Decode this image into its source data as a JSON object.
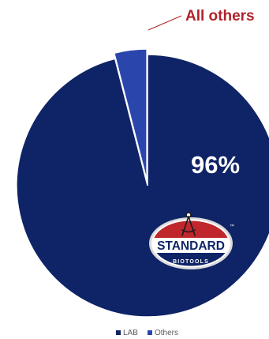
{
  "chart_data": {
    "type": "pie",
    "title": "",
    "start_angle_deg": 0,
    "slices": [
      {
        "name": "LAB",
        "value": 96,
        "color": "#0f2466",
        "label": "96%"
      },
      {
        "name": "Others",
        "value": 4,
        "color": "#2a46ad",
        "label": ""
      }
    ],
    "callout": {
      "text": "All others",
      "color": "#b0232a",
      "slice": "Others"
    },
    "legend": {
      "position": "bottom",
      "entries": [
        "LAB",
        "Others"
      ]
    }
  },
  "logo": {
    "brand_top": "STANDARD",
    "brand_bottom": "BIOTOOLS",
    "trademark": "™",
    "colors": {
      "top": "#c0272d",
      "band": "#ffffff",
      "bottom": "#0f2466",
      "outline": "#d9d9d9"
    }
  }
}
